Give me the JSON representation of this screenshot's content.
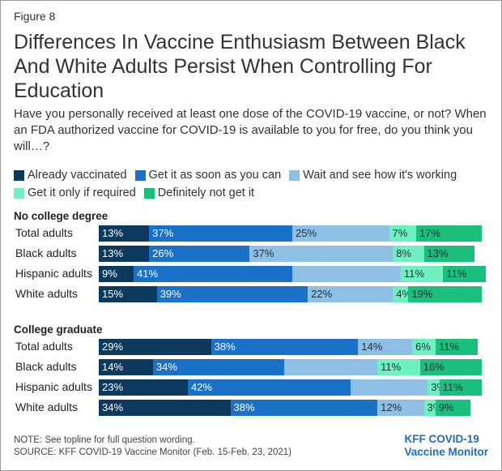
{
  "figure_label": "Figure 8",
  "title": "Differences In Vaccine Enthusiasm Between Black And White Adults Persist When Controlling For Education",
  "subtitle": "Have you personally received at least one dose of the COVID-19 vaccine, or not? When an FDA authorized vaccine for COVID-19 is available to you for free, do you think you will…?",
  "legend": [
    {
      "label": "Already vaccinated",
      "color": "#0b3a5e"
    },
    {
      "label": "Get it as soon as you can",
      "color": "#1a72c8"
    },
    {
      "label": "Wait and see how it's working",
      "color": "#8ec0e6"
    },
    {
      "label": "Get it only if required",
      "color": "#6ff0c0"
    },
    {
      "label": "Definitely not get it",
      "color": "#19bf7a"
    }
  ],
  "note": "NOTE: See topline for full question wording.",
  "source": "SOURCE: KFF COVID-19 Vaccine Monitor (Feb. 15-Feb. 23, 2021)",
  "brand": {
    "line1": "KFF COVID-19",
    "line2": "Vaccine Monitor"
  },
  "chart_data": {
    "type": "bar",
    "orientation": "horizontal-stacked",
    "series_names": [
      "Already vaccinated",
      "Get it as soon as you can",
      "Wait and see how it's working",
      "Get it only if required",
      "Definitely not get it"
    ],
    "groups": [
      {
        "title": "No college degree",
        "rows": [
          {
            "label": "Total adults",
            "values": [
              13,
              37,
              25,
              7,
              17
            ]
          },
          {
            "label": "Black adults",
            "values": [
              13,
              26,
              37,
              8,
              13
            ]
          },
          {
            "label": "Hispanic adults",
            "values": [
              9,
              41,
              28,
              11,
              11
            ]
          },
          {
            "label": "White adults",
            "values": [
              15,
              39,
              22,
              4,
              19
            ]
          }
        ]
      },
      {
        "title": "College graduate",
        "rows": [
          {
            "label": "Total adults",
            "values": [
              29,
              38,
              14,
              6,
              11
            ]
          },
          {
            "label": "Black adults",
            "values": [
              14,
              34,
              24,
              11,
              16
            ]
          },
          {
            "label": "Hispanic adults",
            "values": [
              23,
              42,
              20,
              3,
              11
            ]
          },
          {
            "label": "White adults",
            "values": [
              34,
              38,
              12,
              3,
              9
            ]
          }
        ]
      }
    ],
    "hidden_labels": [
      {
        "group": 1,
        "row": 3,
        "series": 3
      },
      {
        "group": 2,
        "row": 2,
        "series": 3
      },
      {
        "group": 2,
        "row": 3,
        "series": 3
      }
    ],
    "xlim": [
      0,
      100
    ]
  }
}
